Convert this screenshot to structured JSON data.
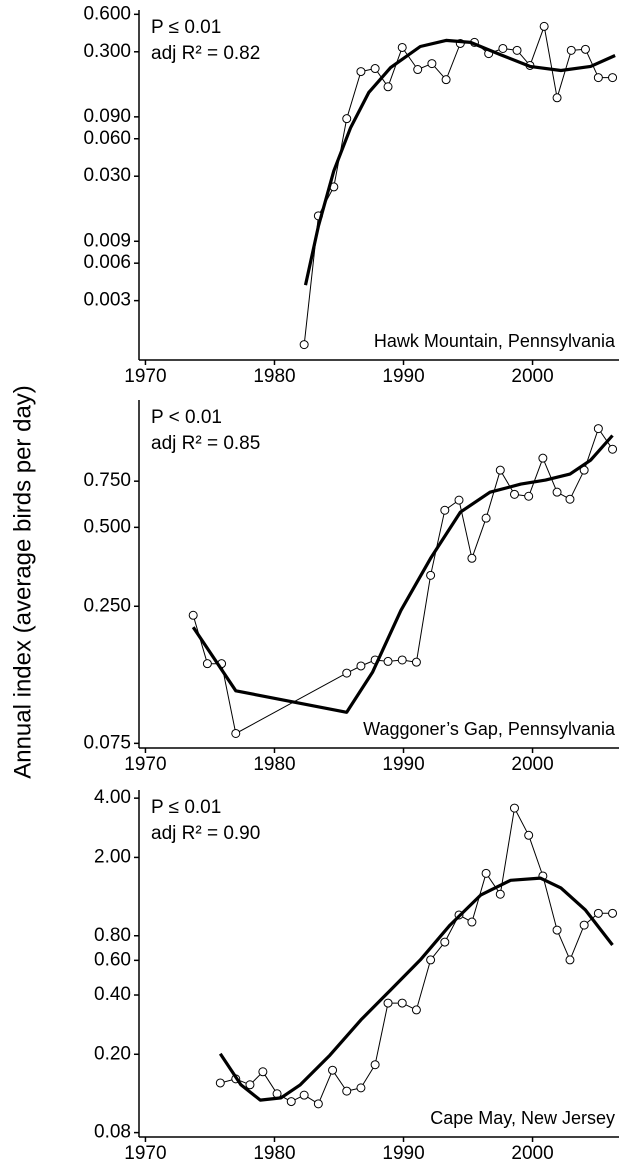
{
  "y_label": "Annual index (average birds per day)",
  "chart_data": [
    {
      "type": "line",
      "log_y": true,
      "location": "Hawk Mountain, Pennsylvania",
      "annotations": [
        "P ≤ 0.01",
        "adj R² = 0.82"
      ],
      "xlim": [
        1969.5,
        2006.7
      ],
      "xticks": [
        1970,
        1980,
        1990,
        2000
      ],
      "ylim": [
        0.001,
        0.65
      ],
      "yticks": [
        {
          "value": 0.6,
          "label": "0.600"
        },
        {
          "value": 0.3,
          "label": "0.300"
        },
        {
          "value": 0.09,
          "label": "0.090"
        },
        {
          "value": 0.06,
          "label": "0.060"
        },
        {
          "value": 0.03,
          "label": "0.030"
        },
        0.009,
        0.006,
        0.003
      ],
      "series": [
        {
          "color": "#000000",
          "width": 1,
          "markers": true,
          "x": [
            1982.3,
            1983.4,
            1984.6,
            1985.6,
            1986.7,
            1987.8,
            1988.8,
            1989.9,
            1991.1,
            1992.2,
            1993.3,
            1994.4,
            1995.5,
            1996.6,
            1997.7,
            1998.8,
            1999.8,
            2000.9,
            2001.9,
            2003.0,
            2004.1,
            2005.1,
            2006.2
          ],
          "values": [
            0.00133,
            0.0144,
            0.0246,
            0.087,
            0.208,
            0.22,
            0.157,
            0.325,
            0.216,
            0.241,
            0.179,
            0.35,
            0.357,
            0.29,
            0.319,
            0.308,
            0.233,
            0.48,
            0.128,
            0.308,
            0.314,
            0.186,
            0.186
          ]
        },
        {
          "color": "#000000",
          "width": 3.2,
          "markers": false,
          "x": [
            1982.4,
            1983.4,
            1984.6,
            1985.9,
            1987.3,
            1989.0,
            1991.3,
            1993.3,
            1995.2,
            1997.5,
            1999.8,
            2002.2,
            2004.5,
            2006.4
          ],
          "values": [
            0.004,
            0.0119,
            0.0331,
            0.0736,
            0.141,
            0.224,
            0.331,
            0.37,
            0.357,
            0.285,
            0.229,
            0.212,
            0.229,
            0.28
          ]
        }
      ]
    },
    {
      "type": "line",
      "log_y": true,
      "location": "Waggoner’s Gap, Pennsylvania",
      "annotations": [
        "P < 0.01",
        "adj R² = 0.85"
      ],
      "xlim": [
        1969.5,
        2006.7
      ],
      "xticks": [
        1970,
        1980,
        1990,
        2000
      ],
      "ylim": [
        0.072,
        1.53
      ],
      "yticks": [
        {
          "value": 0.75,
          "label": "0.750"
        },
        {
          "value": 0.5,
          "label": "0.500"
        },
        {
          "value": 0.25,
          "label": "0.250"
        },
        0.075
      ],
      "series": [
        {
          "color": "#000000",
          "width": 1,
          "markers": true,
          "x": [
            1973.7,
            1974.8,
            1975.9,
            1977.0,
            1985.6,
            1986.7,
            1987.8,
            1988.8,
            1989.9,
            1991.0,
            1992.1,
            1993.2,
            1994.3,
            1995.3,
            1996.4,
            1997.5,
            1998.6,
            1999.7,
            2000.8,
            2001.9,
            2002.9,
            2004.0,
            2005.1,
            2006.2
          ],
          "values": [
            0.231,
            0.151,
            0.151,
            0.0818,
            0.139,
            0.148,
            0.156,
            0.154,
            0.156,
            0.153,
            0.328,
            0.581,
            0.635,
            0.381,
            0.542,
            0.826,
            0.668,
            0.657,
            0.918,
            0.681,
            0.64,
            0.826,
            1.19,
            0.993
          ]
        },
        {
          "color": "#000000",
          "width": 3.2,
          "markers": false,
          "x": [
            1973.7,
            1977.0,
            1985.6,
            1987.6,
            1989.8,
            1992.1,
            1994.4,
            1996.7,
            1999.1,
            2001.0,
            2002.9,
            2004.5,
            2006.2
          ],
          "values": [
            0.208,
            0.119,
            0.0985,
            0.14,
            0.241,
            0.381,
            0.571,
            0.681,
            0.731,
            0.757,
            0.798,
            0.902,
            1.12
          ]
        }
      ]
    },
    {
      "type": "line",
      "log_y": true,
      "location": "Cape May, New Jersey",
      "annotations": [
        "P ≤ 0.01",
        "adj R² = 0.90"
      ],
      "xlim": [
        1969.5,
        2006.7
      ],
      "xticks": [
        1970,
        1980,
        1990,
        2000
      ],
      "ylim": [
        0.076,
        4.4
      ],
      "yticks": [
        {
          "value": 4,
          "label": "4.00"
        },
        {
          "value": 2,
          "label": "2.00"
        },
        {
          "value": 0.8,
          "label": "0.80"
        },
        {
          "value": 0.6,
          "label": "0.60"
        },
        {
          "value": 0.4,
          "label": "0.40"
        },
        {
          "value": 0.2,
          "label": "0.20"
        },
        0.08
      ],
      "series": [
        {
          "color": "#000000",
          "width": 1,
          "markers": true,
          "x": [
            1975.8,
            1977.0,
            1978.1,
            1979.1,
            1980.2,
            1981.3,
            1982.3,
            1983.4,
            1984.5,
            1985.6,
            1986.7,
            1987.8,
            1988.8,
            1989.9,
            1991.0,
            1992.1,
            1993.2,
            1994.3,
            1995.3,
            1996.4,
            1997.5,
            1998.6,
            1999.7,
            2000.8,
            2001.9,
            2002.9,
            2004.0,
            2005.1,
            2006.2
          ],
          "values": [
            0.143,
            0.15,
            0.14,
            0.163,
            0.126,
            0.115,
            0.124,
            0.112,
            0.166,
            0.13,
            0.135,
            0.177,
            0.364,
            0.364,
            0.336,
            0.603,
            0.743,
            1.02,
            0.939,
            1.66,
            1.3,
            3.56,
            2.59,
            1.61,
            0.855,
            0.603,
            0.906,
            1.04,
            1.04
          ]
        },
        {
          "color": "#000000",
          "width": 3.2,
          "markers": false,
          "x": [
            1975.8,
            1977.4,
            1978.9,
            1980.5,
            1982.0,
            1984.3,
            1986.7,
            1989.0,
            1991.3,
            1993.6,
            1996.0,
            1998.3,
            2000.6,
            2002.2,
            2004.1,
            2006.2
          ],
          "values": [
            0.201,
            0.14,
            0.117,
            0.12,
            0.14,
            0.198,
            0.299,
            0.424,
            0.603,
            0.906,
            1.29,
            1.53,
            1.57,
            1.4,
            1.08,
            0.718
          ]
        }
      ]
    }
  ]
}
